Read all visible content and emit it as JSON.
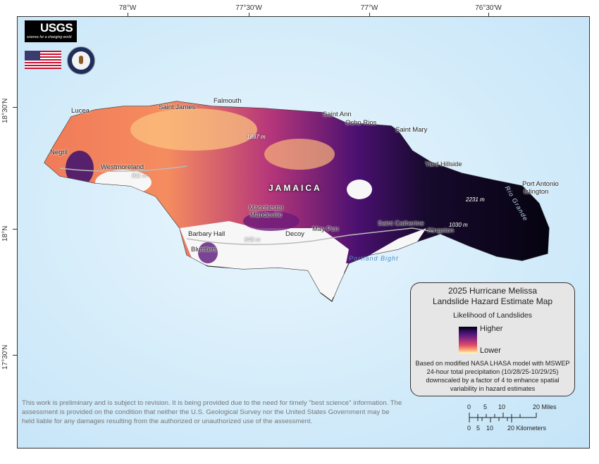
{
  "graticule": {
    "longitudes": [
      "78°W",
      "77°30'W",
      "77°W",
      "76°30'W"
    ],
    "latitudes": [
      "18°30'N",
      "18°N",
      "17°30'N"
    ]
  },
  "logos": {
    "usgs_wordmark": "USGS",
    "usgs_tagline": "science for a changing world",
    "flag": "us-flag",
    "seal": "us-department-of-state-seal"
  },
  "map": {
    "country": "JAMAICA",
    "places": [
      "Lucea",
      "Saint James",
      "Falmouth",
      "Saint Ann",
      "Ocho Rios",
      "Saint Mary",
      "Negril",
      "Westmoreland",
      "Yard Hillside",
      "Port Antonio",
      "Islington",
      "Manchester",
      "Mandeville",
      "Saint Catherine",
      "May Pen",
      "Kingston",
      "Decoy",
      "Barbary Hall",
      "Bluntlers"
    ],
    "elevations": [
      "1897 m",
      "811 m",
      "2231 m",
      "1030 m",
      "848 m"
    ],
    "water": [
      "Portland Bight",
      "Rio Grande"
    ],
    "colors": {
      "higher": "#000004",
      "mid": "#8c2981",
      "low": "#fe9f6d",
      "lowest": "#fcfdbf",
      "no_hazard": "#f7f7f7",
      "sea": "#d4ecfa"
    }
  },
  "legend": {
    "title_line1": "2025 Hurricane Melissa",
    "title_line2": "Landslide Hazard Estimate Map",
    "subtitle": "Likelihood of Landslides",
    "higher": "Higher",
    "lower": "Lower",
    "note_line1": "Based on modified NASA LHASA model with MSWEP",
    "note_line2": "24-hour total precipitation (10/28/25-10/29/25)",
    "note_line3": "downscaled by a factor of 4 to enhance spatial",
    "note_line4": "variability in hazard estimates"
  },
  "scale": {
    "miles": [
      "0",
      "5",
      "10",
      "20 Miles"
    ],
    "km": [
      "0",
      "5",
      "10",
      "20 Kilometers"
    ]
  },
  "disclaimer": "This work is preliminary and is subject to revision. It is being provided due to the need for timely \"best science\" information. The assessment is provided on the condition that neither the U.S. Geological Survey nor the United States Government may be held liable for any damages resulting from the authorized or unauthorized use of the assessment."
}
